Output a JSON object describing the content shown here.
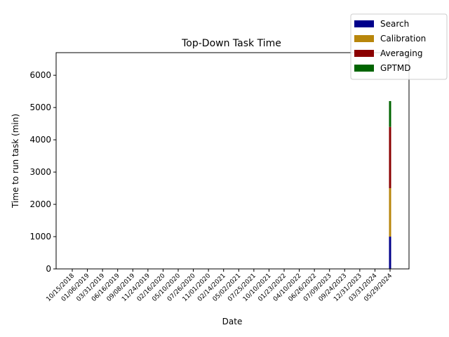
{
  "chart_data": {
    "type": "bar",
    "stacked": true,
    "title": "Top-Down Task Time",
    "xlabel": "Date",
    "ylabel": "Time to run task (min)",
    "ylim": [
      0,
      6700
    ],
    "yticks": [
      0,
      1000,
      2000,
      3000,
      4000,
      5000,
      6000
    ],
    "categories": [
      "10/15/2018",
      "01/06/2019",
      "03/31/2019",
      "06/16/2019",
      "09/08/2019",
      "11/24/2019",
      "02/16/2020",
      "05/10/2020",
      "07/26/2020",
      "11/01/2020",
      "02/14/2021",
      "05/02/2021",
      "07/25/2021",
      "10/10/2021",
      "01/23/2022",
      "04/10/2022",
      "06/26/2022",
      "07/09/2023",
      "09/24/2023",
      "12/31/2023",
      "03/31/2024",
      "05/29/2024"
    ],
    "series": [
      {
        "name": "Search",
        "color": "#00008b",
        "values": [
          0,
          0,
          0,
          0,
          0,
          0,
          0,
          0,
          0,
          0,
          0,
          0,
          0,
          0,
          0,
          0,
          0,
          0,
          0,
          0,
          0,
          1000
        ]
      },
      {
        "name": "Calibration",
        "color": "#b8860b",
        "values": [
          0,
          0,
          0,
          0,
          0,
          0,
          0,
          0,
          0,
          0,
          0,
          0,
          0,
          0,
          0,
          0,
          0,
          0,
          0,
          0,
          0,
          1500
        ]
      },
      {
        "name": "Averaging",
        "color": "#8b0000",
        "values": [
          0,
          0,
          0,
          0,
          0,
          0,
          0,
          0,
          0,
          0,
          0,
          0,
          0,
          0,
          0,
          0,
          0,
          0,
          0,
          0,
          0,
          1900
        ]
      },
      {
        "name": "GPTMD",
        "color": "#006400",
        "values": [
          0,
          0,
          0,
          0,
          0,
          0,
          0,
          0,
          0,
          0,
          0,
          0,
          0,
          0,
          0,
          0,
          0,
          0,
          0,
          0,
          0,
          800
        ]
      }
    ],
    "legend": "top-right",
    "grid": false
  }
}
